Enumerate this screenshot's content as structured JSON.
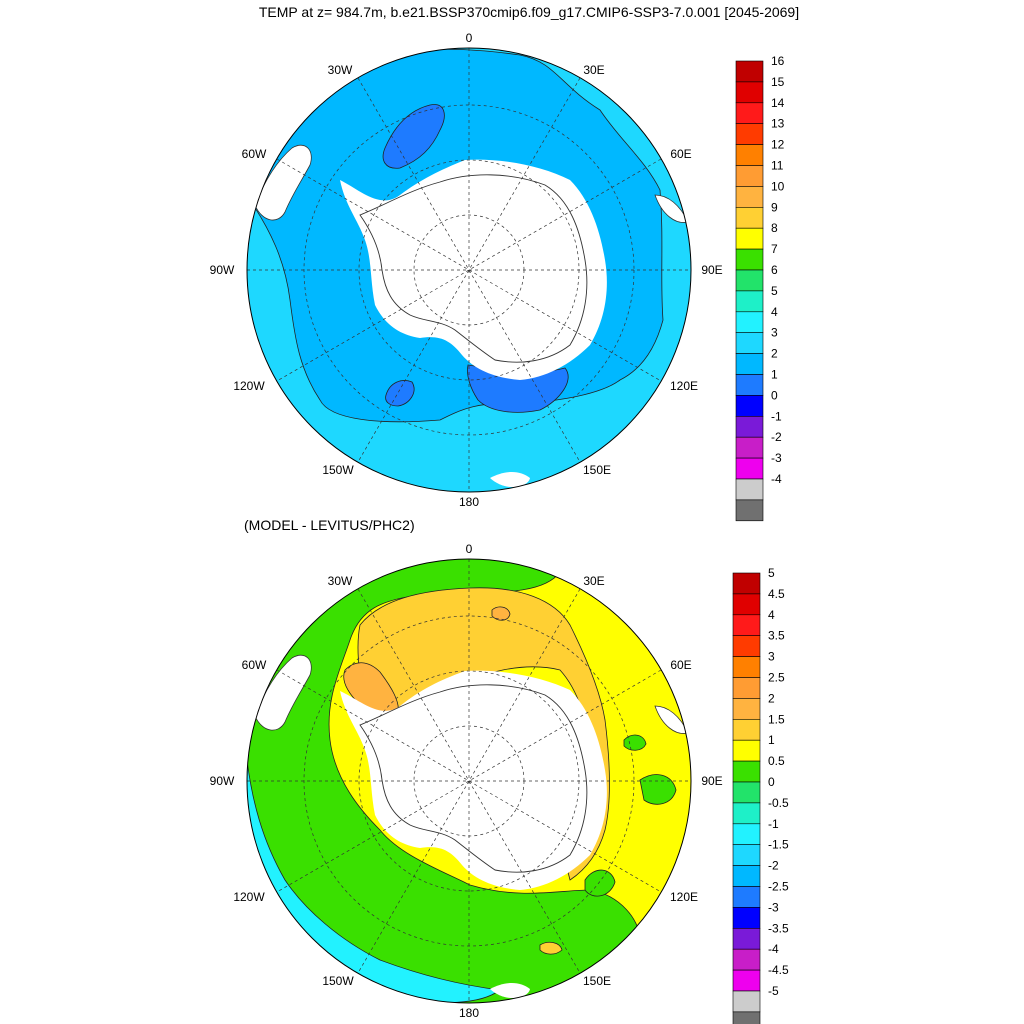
{
  "title": "TEMP at z= 984.7m, b.e21.BSSP370cmip6.f09_g17.CMIP6-SSP3-7.0.001 [2045-2069]",
  "subtitle": "(MODEL - LEVITUS/PHC2)",
  "panels": [
    {
      "id": "top",
      "lon_labels": [
        "0",
        "30E",
        "60E",
        "90E",
        "120E",
        "150E",
        "180",
        "150W",
        "120W",
        "90W",
        "60W",
        "30W"
      ],
      "colorbar": {
        "levels": [
          "16",
          "15",
          "14",
          "13",
          "12",
          "11",
          "10",
          "9",
          "8",
          "7",
          "6",
          "5",
          "4",
          "3",
          "2",
          "1",
          "0",
          "-1",
          "-2",
          "-3",
          "-4"
        ],
        "colors": [
          "#c00000",
          "#e00000",
          "#ff1a1a",
          "#ff3b00",
          "#ff8000",
          "#ff9c33",
          "#ffb340",
          "#ffd033",
          "#ffff00",
          "#3ae000",
          "#22e36a",
          "#1ef0c8",
          "#22f2ff",
          "#1ed8ff",
          "#00b8ff",
          "#1e7bff",
          "#0000ff",
          "#7a1ad8",
          "#c81ec8",
          "#ee00ee",
          "#cccccc",
          "#707070"
        ]
      }
    },
    {
      "id": "bottom",
      "lon_labels": [
        "0",
        "30E",
        "60E",
        "90E",
        "120E",
        "150E",
        "180",
        "150W",
        "120W",
        "90W",
        "60W",
        "30W"
      ],
      "colorbar": {
        "levels": [
          "5",
          "4.5",
          "4",
          "3.5",
          "3",
          "2.5",
          "2",
          "1.5",
          "1",
          "0.5",
          "0",
          "-0.5",
          "-1",
          "-1.5",
          "-2",
          "-2.5",
          "-3",
          "-3.5",
          "-4",
          "-4.5",
          "-5"
        ],
        "colors": [
          "#c00000",
          "#e00000",
          "#ff1a1a",
          "#ff3b00",
          "#ff8000",
          "#ff9c33",
          "#ffb340",
          "#ffd033",
          "#ffff00",
          "#3ae000",
          "#22e36a",
          "#1ef0c8",
          "#22f2ff",
          "#1ed8ff",
          "#00b8ff",
          "#1e7bff",
          "#0000ff",
          "#7a1ad8",
          "#c81ec8",
          "#ee00ee",
          "#cccccc",
          "#707070"
        ]
      }
    }
  ],
  "map_colors": {
    "top_outer": "#1ed8ff",
    "top_mid": "#00b8ff",
    "top_cold": "#1e7bff",
    "bottom_green": "#3ae000",
    "bottom_cyan": "#22f2ff",
    "bottom_yellow": "#ffff00",
    "bottom_gold": "#ffd033",
    "bottom_orange": "#ffb340",
    "bottom_darkorange": "#ff9c33",
    "land": "#ffffff"
  }
}
